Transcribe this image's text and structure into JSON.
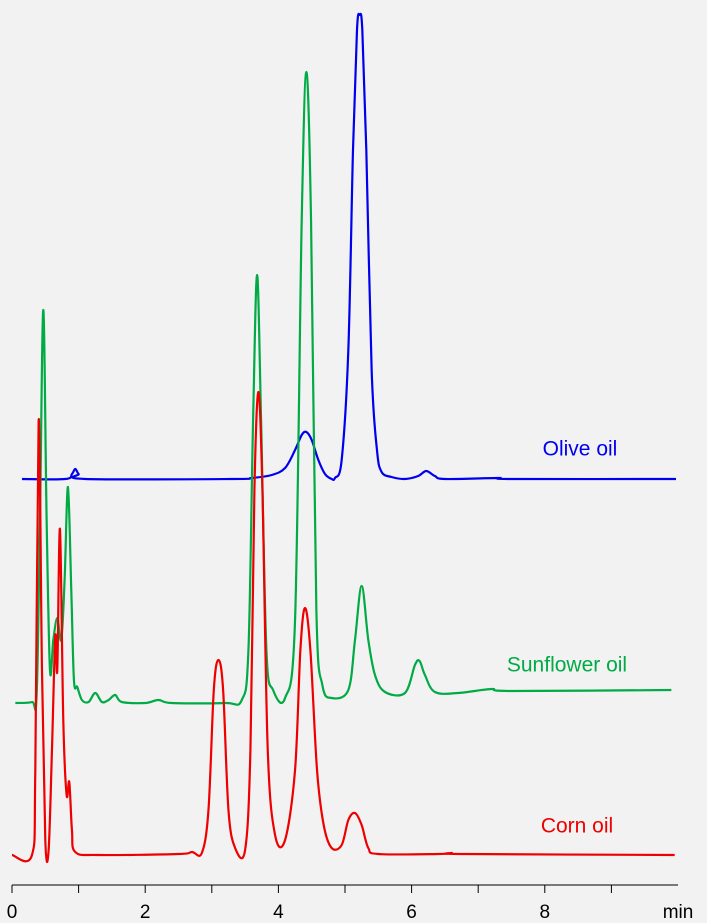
{
  "chart_data": {
    "type": "line",
    "xlabel": "min",
    "xlim": [
      0,
      10
    ],
    "xticks": [
      0,
      2,
      4,
      6,
      8
    ],
    "minor_xticks": [
      1,
      3,
      5,
      7,
      9
    ],
    "ylim": [
      0,
      860
    ],
    "series": [
      {
        "name": "Olive oil",
        "color": "#0000ee",
        "x": [
          0.15,
          0.8,
          0.9,
          0.95,
          1.0,
          1.1,
          3.3,
          3.6,
          3.9,
          4.1,
          4.25,
          4.35,
          4.42,
          4.5,
          4.6,
          4.7,
          4.8,
          4.85,
          4.95,
          5.05,
          5.12,
          5.18,
          5.22,
          5.26,
          5.32,
          5.4,
          5.48,
          5.55,
          5.7,
          5.9,
          6.1,
          6.22,
          6.35,
          6.5,
          7.3,
          7.5,
          9.97
        ],
        "values": [
          391,
          391,
          396,
          401,
          396,
          391,
          391,
          392,
          395,
          402,
          420,
          435,
          438,
          430,
          410,
          396,
          391,
          392,
          410,
          520,
          720,
          840,
          855,
          840,
          720,
          500,
          420,
          398,
          393,
          391,
          394,
          399,
          394,
          391,
          392,
          391,
          391
        ]
      },
      {
        "name": "Sunflower oil",
        "color": "#00aa44",
        "x": [
          0.05,
          0.3,
          0.37,
          0.42,
          0.47,
          0.52,
          0.57,
          0.62,
          0.68,
          0.74,
          0.79,
          0.84,
          0.89,
          0.93,
          0.98,
          1.05,
          1.15,
          1.25,
          1.35,
          1.45,
          1.55,
          1.65,
          2.0,
          2.2,
          2.4,
          3.2,
          3.45,
          3.55,
          3.62,
          3.68,
          3.74,
          3.82,
          3.92,
          4.1,
          4.25,
          4.35,
          4.42,
          4.49,
          4.57,
          4.66,
          4.8,
          5.05,
          5.15,
          5.25,
          5.35,
          5.45,
          5.6,
          5.9,
          6.05,
          6.12,
          6.2,
          6.35,
          6.7,
          7.2,
          7.5,
          9.9
        ],
        "values": [
          167,
          168,
          175,
          350,
          560,
          350,
          200,
          230,
          252,
          230,
          290,
          383,
          280,
          190,
          183,
          170,
          168,
          177,
          168,
          170,
          175,
          168,
          167,
          170,
          167,
          167,
          170,
          220,
          450,
          595,
          450,
          220,
          180,
          172,
          250,
          650,
          798,
          650,
          260,
          185,
          172,
          180,
          230,
          284,
          230,
          195,
          178,
          177,
          205,
          209,
          195,
          178,
          177,
          181,
          179,
          180
        ]
      },
      {
        "name": "Corn oil",
        "color": "#ee0000",
        "x": [
          0.0,
          0.3,
          0.35,
          0.4,
          0.45,
          0.5,
          0.55,
          0.6,
          0.65,
          0.68,
          0.72,
          0.77,
          0.82,
          0.86,
          0.9,
          0.95,
          1.3,
          2.5,
          2.7,
          2.85,
          2.95,
          3.03,
          3.1,
          3.17,
          3.25,
          3.35,
          3.5,
          3.58,
          3.64,
          3.7,
          3.76,
          3.84,
          3.95,
          4.1,
          4.25,
          4.33,
          4.4,
          4.48,
          4.58,
          4.68,
          4.8,
          4.95,
          5.05,
          5.15,
          5.25,
          5.35,
          5.5,
          6.4,
          6.6,
          6.8,
          9.95
        ],
        "values": [
          15,
          15,
          100,
          450,
          200,
          30,
          20,
          120,
          234,
          200,
          341,
          150,
          75,
          88,
          40,
          18,
          15,
          16,
          18,
          17,
          60,
          180,
          210,
          180,
          60,
          22,
          20,
          120,
          380,
          478,
          380,
          120,
          35,
          30,
          100,
          220,
          262,
          220,
          100,
          45,
          22,
          25,
          50,
          57,
          45,
          22,
          16,
          16,
          17,
          16,
          15
        ]
      }
    ]
  }
}
